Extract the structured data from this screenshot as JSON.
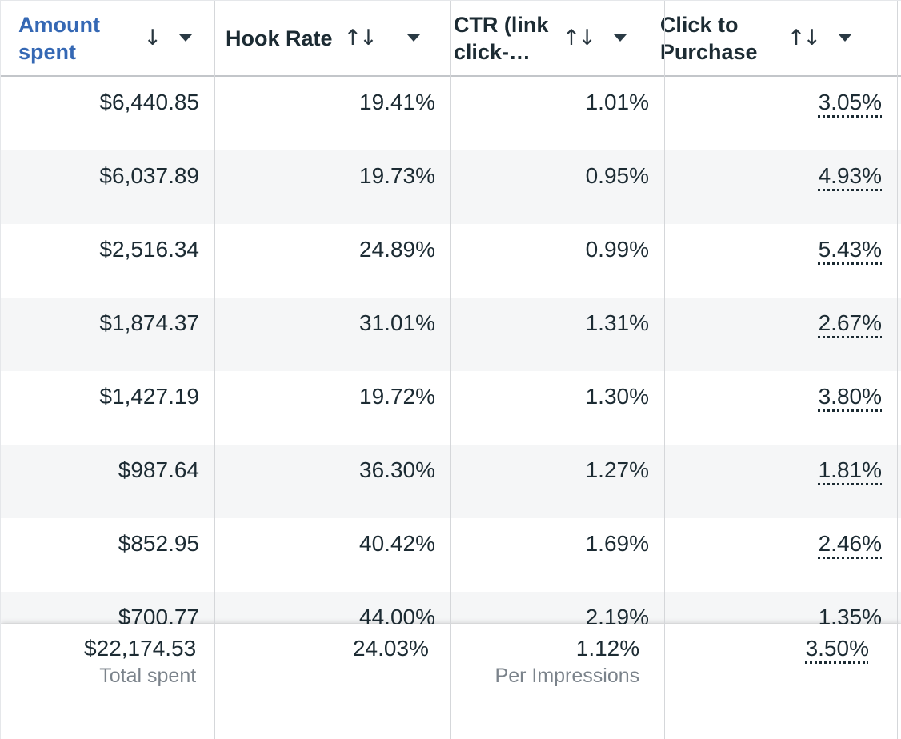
{
  "header": {
    "columns": [
      {
        "label": "Amount spent",
        "sorted": true,
        "sort_state": "descending"
      },
      {
        "label": "Hook Rate",
        "sorted": false,
        "sort_state": "unsorted"
      },
      {
        "label": "CTR (link click-…",
        "sorted": false,
        "sort_state": "unsorted"
      },
      {
        "label": "Click to Purchase",
        "sorted": false,
        "sort_state": "unsorted"
      }
    ]
  },
  "icons": {
    "sort_descending": "↓",
    "sort_up": "↑",
    "sort_down": "↓",
    "caret_down": "triangle-down"
  },
  "rows": [
    {
      "amount_spent": "$6,440.85",
      "hook_rate": "19.41%",
      "ctr": "1.01%",
      "click_to_purchase": "3.05%"
    },
    {
      "amount_spent": "$6,037.89",
      "hook_rate": "19.73%",
      "ctr": "0.95%",
      "click_to_purchase": "4.93%"
    },
    {
      "amount_spent": "$2,516.34",
      "hook_rate": "24.89%",
      "ctr": "0.99%",
      "click_to_purchase": "5.43%"
    },
    {
      "amount_spent": "$1,874.37",
      "hook_rate": "31.01%",
      "ctr": "1.31%",
      "click_to_purchase": "2.67%"
    },
    {
      "amount_spent": "$1,427.19",
      "hook_rate": "19.72%",
      "ctr": "1.30%",
      "click_to_purchase": "3.80%"
    },
    {
      "amount_spent": "$987.64",
      "hook_rate": "36.30%",
      "ctr": "1.27%",
      "click_to_purchase": "1.81%"
    },
    {
      "amount_spent": "$852.95",
      "hook_rate": "40.42%",
      "ctr": "1.69%",
      "click_to_purchase": "2.46%"
    },
    {
      "amount_spent": "$700.77",
      "hook_rate": "44.00%",
      "ctr": "2.19%",
      "click_to_purchase": "1.35%"
    }
  ],
  "totals": {
    "amount_spent": "$22,174.53",
    "amount_spent_label": "Total spent",
    "hook_rate": "24.03%",
    "ctr": "1.12%",
    "ctr_label": "Per Impressions",
    "click_to_purchase": "3.50%"
  },
  "colors": {
    "sorted_header_text": "#3568b4",
    "body_text": "#1c2b33",
    "row_stripe": "#f5f6f7",
    "muted_label": "#7b838b",
    "column_border": "#d5d7da"
  }
}
